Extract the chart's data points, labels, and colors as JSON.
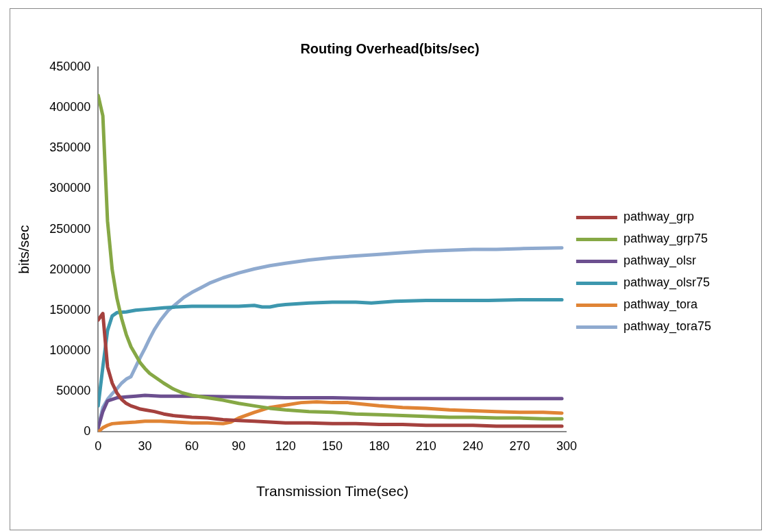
{
  "chart_data": {
    "type": "line",
    "title": "Routing Overhead(bits/sec)",
    "xlabel": "Transmission Time(sec)",
    "ylabel": "bits/sec",
    "xlim": [
      0,
      300
    ],
    "xticks": [
      0,
      30,
      60,
      90,
      120,
      150,
      180,
      210,
      240,
      270,
      300
    ],
    "ylim": [
      0,
      450000
    ],
    "yticks": [
      0,
      50000,
      100000,
      150000,
      200000,
      250000,
      300000,
      350000,
      400000,
      450000
    ],
    "grid": false,
    "legend": "right",
    "marker": "none",
    "line_style": "solid",
    "series": [
      {
        "name": "pathway_grp",
        "color": "#a5413e",
        "x": [
          0,
          3,
          6,
          9,
          12,
          15,
          18,
          21,
          24,
          27,
          30,
          36,
          42,
          48,
          54,
          60,
          70,
          80,
          90,
          100,
          110,
          120,
          135,
          150,
          165,
          180,
          195,
          210,
          225,
          240,
          255,
          270,
          285,
          297
        ],
        "values": [
          138000,
          146000,
          80000,
          60000,
          48000,
          40000,
          35000,
          32000,
          30000,
          28000,
          27000,
          25000,
          22000,
          20000,
          19000,
          18000,
          17000,
          15000,
          14000,
          13000,
          12000,
          11000,
          11000,
          10000,
          10000,
          9000,
          9000,
          8000,
          8000,
          8000,
          7000,
          7000,
          7000,
          7000
        ]
      },
      {
        "name": "pathway_grp75",
        "color": "#86a845",
        "x": [
          0,
          3,
          6,
          9,
          12,
          15,
          18,
          21,
          24,
          27,
          30,
          33,
          36,
          42,
          48,
          54,
          60,
          70,
          80,
          90,
          100,
          110,
          120,
          135,
          150,
          165,
          180,
          195,
          210,
          225,
          240,
          255,
          270,
          285,
          297
        ],
        "values": [
          415000,
          390000,
          260000,
          200000,
          165000,
          140000,
          120000,
          105000,
          95000,
          85000,
          78000,
          72000,
          68000,
          60000,
          53000,
          48000,
          45000,
          42000,
          39000,
          35000,
          32000,
          29000,
          27000,
          25000,
          24000,
          22000,
          21000,
          20000,
          19000,
          18000,
          18000,
          17000,
          17000,
          16000,
          16000
        ]
      },
      {
        "name": "pathway_olsr",
        "color": "#6c4f8f",
        "x": [
          0,
          3,
          6,
          9,
          12,
          18,
          24,
          30,
          40,
          60,
          90,
          120,
          150,
          180,
          210,
          240,
          270,
          297
        ],
        "values": [
          5000,
          25000,
          38000,
          40000,
          42000,
          43000,
          44000,
          45000,
          44000,
          44000,
          43000,
          42000,
          42000,
          41000,
          41000,
          41000,
          41000,
          41000
        ]
      },
      {
        "name": "pathway_olsr75",
        "color": "#3d97ae",
        "x": [
          0,
          3,
          6,
          9,
          12,
          18,
          24,
          30,
          36,
          42,
          50,
          60,
          70,
          80,
          90,
          100,
          105,
          110,
          115,
          120,
          135,
          150,
          165,
          175,
          190,
          210,
          230,
          250,
          270,
          297
        ],
        "values": [
          32000,
          80000,
          125000,
          143000,
          147000,
          148000,
          150000,
          151000,
          152000,
          153000,
          154000,
          155000,
          155000,
          155000,
          155000,
          156000,
          154000,
          154000,
          156000,
          157000,
          159000,
          160000,
          160000,
          159000,
          161000,
          162000,
          162000,
          162000,
          163000,
          163000
        ]
      },
      {
        "name": "pathway_tora",
        "color": "#e08435",
        "x": [
          0,
          3,
          6,
          9,
          15,
          24,
          30,
          40,
          50,
          60,
          70,
          80,
          85,
          90,
          100,
          110,
          120,
          130,
          140,
          150,
          160,
          170,
          180,
          195,
          210,
          225,
          240,
          255,
          270,
          285,
          297
        ],
        "values": [
          0,
          5000,
          8000,
          10000,
          11000,
          12000,
          13000,
          13000,
          12000,
          11000,
          11000,
          10000,
          12000,
          17000,
          24000,
          30000,
          33000,
          36000,
          37000,
          36000,
          36000,
          34000,
          32000,
          30000,
          29000,
          27000,
          26000,
          25000,
          24000,
          24000,
          23000
        ]
      },
      {
        "name": "pathway_tora75",
        "color": "#8faacf",
        "x": [
          0,
          3,
          6,
          9,
          12,
          15,
          18,
          21,
          24,
          27,
          30,
          33,
          36,
          40,
          45,
          50,
          55,
          60,
          66,
          72,
          80,
          90,
          100,
          110,
          120,
          135,
          150,
          165,
          180,
          195,
          210,
          225,
          240,
          255,
          270,
          297
        ],
        "values": [
          5000,
          30000,
          40000,
          47000,
          53000,
          60000,
          65000,
          68000,
          80000,
          92000,
          103000,
          115000,
          126000,
          138000,
          150000,
          158000,
          166000,
          172000,
          178000,
          184000,
          190000,
          196000,
          201000,
          205000,
          208000,
          212000,
          215000,
          217000,
          219000,
          221000,
          223000,
          224000,
          225000,
          225000,
          226000,
          227000
        ]
      }
    ]
  }
}
